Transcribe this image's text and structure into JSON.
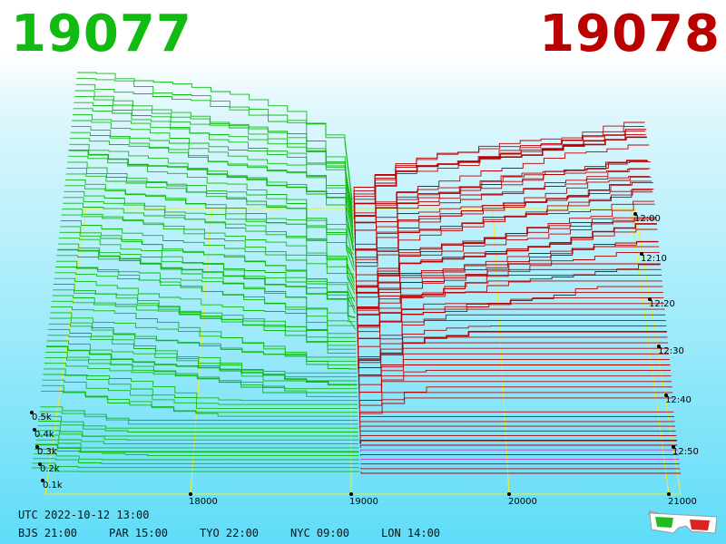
{
  "prices": {
    "left": "19077",
    "right": "19078"
  },
  "colors": {
    "bid": "#11bb11",
    "ask": "#bb0000",
    "grid": "#f0ee30",
    "highlight": "#cc33cc"
  },
  "icon": "3d-glasses-icon",
  "footer": {
    "utc": "UTC 2022-10-12 13:00",
    "zones": [
      "BJS 21:00",
      "PAR 15:00",
      "TYO 22:00",
      "NYC 09:00",
      "LON 14:00"
    ]
  },
  "chart_data": {
    "type": "area",
    "title": "",
    "x": {
      "label": "",
      "ticks": [
        "18000",
        "19000",
        "20000",
        "21000"
      ],
      "range": [
        17200,
        21100
      ]
    },
    "y": {
      "label": "",
      "ticks": [
        "0.1k",
        "0.2k",
        "0.3k",
        "0.4k",
        "0.5k"
      ],
      "range": [
        0,
        550
      ]
    },
    "z": {
      "label": "",
      "ticks": [
        "12:00",
        "12:10",
        "12:20",
        "12:30",
        "12:40",
        "12:50"
      ]
    },
    "grid": true,
    "series": [
      {
        "side": "bid",
        "color": "#11bb11",
        "min_x": 17200,
        "max_x": 19077
      },
      {
        "side": "ask",
        "color": "#bb0000",
        "min_x": 19078,
        "max_x": 21100
      }
    ]
  }
}
